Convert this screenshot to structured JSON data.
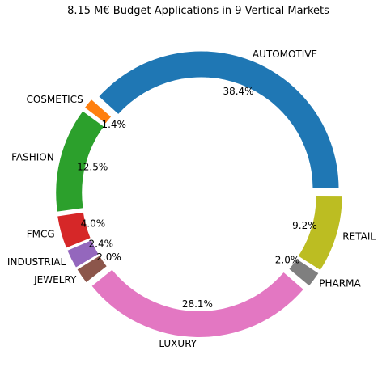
{
  "chart_data": {
    "type": "pie",
    "style": "donut",
    "title": "8.15 M€ Budget Applications in 9 Vertical Markets",
    "direction": "counterclockwise",
    "slices": [
      {
        "label": "AUTOMOTIVE",
        "value": 38.4,
        "pct_label": "38.4%",
        "color": "#1f77b4"
      },
      {
        "label": "COSMETICS",
        "value": 1.4,
        "pct_label": "1.4%",
        "color": "#ff7f0e"
      },
      {
        "label": "FASHION",
        "value": 12.5,
        "pct_label": "12.5%",
        "color": "#2ca02c"
      },
      {
        "label": "FMCG",
        "value": 4.0,
        "pct_label": "4.0%",
        "color": "#d62728"
      },
      {
        "label": "INDUSTRIAL",
        "value": 2.4,
        "pct_label": "2.4%",
        "color": "#9467bd"
      },
      {
        "label": "JEWELRY",
        "value": 2.0,
        "pct_label": "2.0%",
        "color": "#8c564b"
      },
      {
        "label": "LUXURY",
        "value": 28.1,
        "pct_label": "28.1%",
        "color": "#e377c2"
      },
      {
        "label": "PHARMA",
        "value": 2.0,
        "pct_label": "2.0%",
        "color": "#7f7f7f"
      },
      {
        "label": "RETAIL",
        "value": 9.2,
        "pct_label": "9.2%",
        "color": "#bcbd22"
      }
    ]
  }
}
